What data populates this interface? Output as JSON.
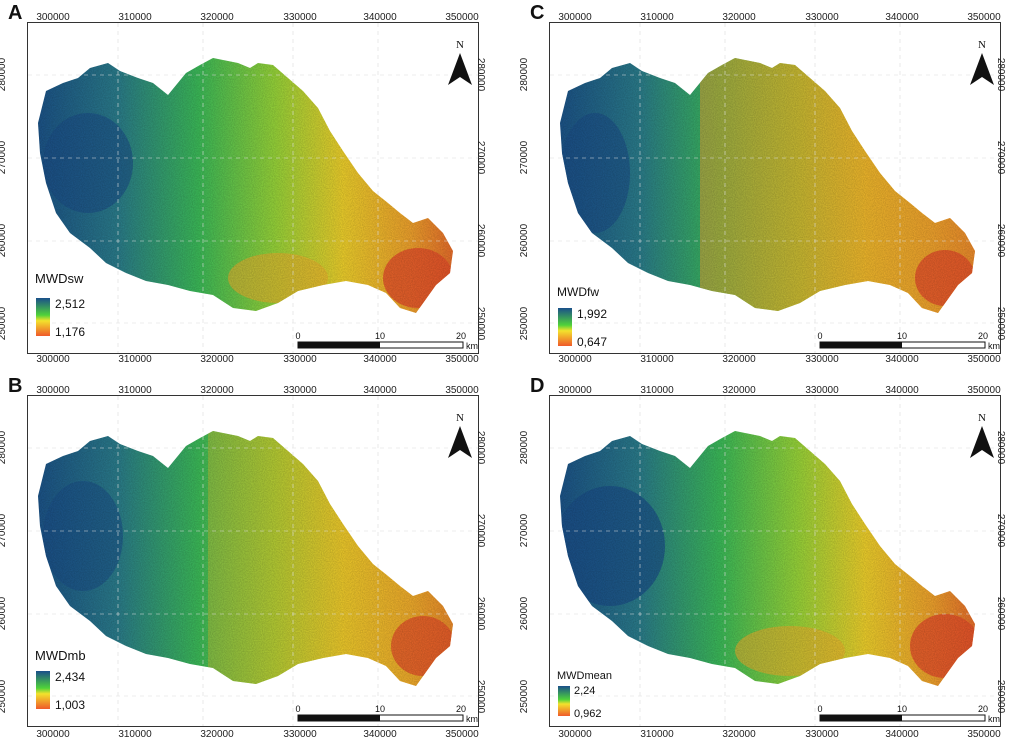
{
  "figure": {
    "x_ticks": [
      "300000",
      "310000",
      "320000",
      "330000",
      "340000",
      "350000"
    ],
    "y_ticks": [
      "280000",
      "270000",
      "260000",
      "250000"
    ],
    "north_label": "N",
    "scale_ticks": [
      "0",
      "10",
      "20"
    ],
    "scale_unit": "km",
    "colors": {
      "low": "#e8502a",
      "mid": "#f5d52a",
      "high_mid": "#5fcf3a",
      "high": "#1a4f8a"
    }
  },
  "panels": [
    {
      "letter": "A",
      "legend_title": "MWDsw",
      "legend_max": "2,512",
      "legend_min": "1,176"
    },
    {
      "letter": "C",
      "legend_title": "MWDfw",
      "legend_max": "1,992",
      "legend_min": "0,647"
    },
    {
      "letter": "B",
      "legend_title": "MWDmb",
      "legend_max": "2,434",
      "legend_min": "1,003"
    },
    {
      "letter": "D",
      "legend_title": "MWDmean",
      "legend_max": "2,24",
      "legend_min": "0,962"
    }
  ]
}
